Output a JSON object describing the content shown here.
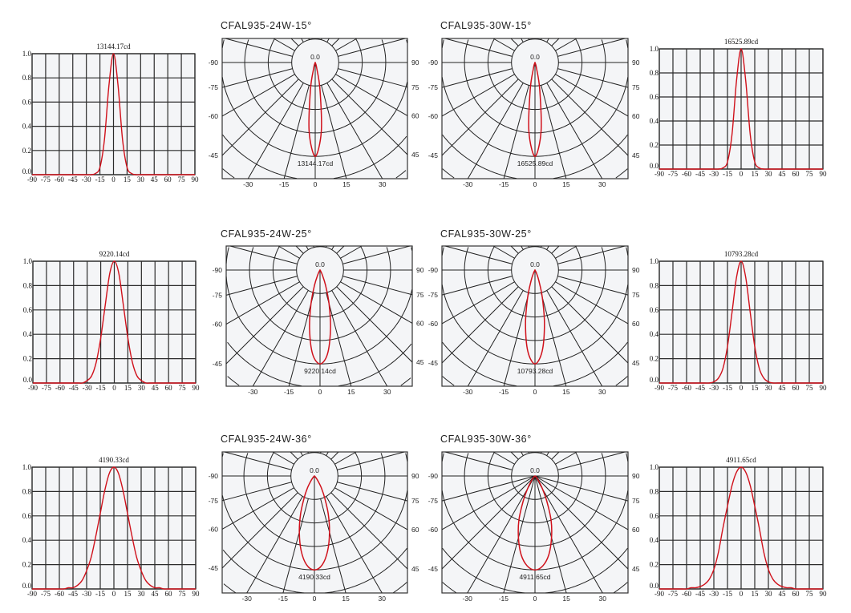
{
  "colors": {
    "curve": "#d0111b",
    "grid": "#2b2b2b",
    "plot_bg": "#f4f5f7"
  },
  "chart_data": [
    {
      "type": "line",
      "id": "cart-24w-15",
      "peak_label": "13144.17cd",
      "x": [
        -90,
        -85,
        -80,
        -75,
        -70,
        -65,
        -60,
        -55,
        -50,
        -45,
        -40,
        -35,
        -30,
        -25,
        -20,
        -15,
        -10,
        -5,
        0,
        5,
        10,
        15,
        20,
        25,
        30,
        35,
        40,
        45,
        50,
        55,
        60,
        65,
        70,
        75,
        80,
        85,
        90
      ],
      "values": [
        0,
        0,
        0,
        0,
        0,
        0,
        0,
        0,
        0,
        0,
        0,
        0,
        0,
        0,
        0.01,
        0.06,
        0.29,
        0.74,
        1,
        0.74,
        0.29,
        0.06,
        0.01,
        0,
        0,
        0,
        0,
        0,
        0,
        0,
        0,
        0,
        0,
        0,
        0,
        0,
        0
      ],
      "xticks": [
        -90,
        -75,
        -60,
        -45,
        -30,
        -15,
        0,
        15,
        30,
        45,
        60,
        75,
        90
      ],
      "yticks": [
        "0.0",
        "0.2",
        "0.4",
        "0.6",
        "0.8",
        "1.0"
      ],
      "xlim": [
        -90,
        90
      ],
      "ylim": [
        0,
        1
      ],
      "grid": true
    },
    {
      "type": "line",
      "id": "cart-30w-15",
      "peak_label": "16525.89cd",
      "x": [
        -90,
        -85,
        -80,
        -75,
        -70,
        -65,
        -60,
        -55,
        -50,
        -45,
        -40,
        -35,
        -30,
        -25,
        -20,
        -15,
        -10,
        -5,
        0,
        5,
        10,
        15,
        20,
        25,
        30,
        35,
        40,
        45,
        50,
        55,
        60,
        65,
        70,
        75,
        80,
        85,
        90
      ],
      "values": [
        0,
        0,
        0,
        0,
        0,
        0,
        0,
        0,
        0,
        0,
        0,
        0,
        0,
        0,
        0.01,
        0.06,
        0.29,
        0.74,
        1,
        0.74,
        0.29,
        0.06,
        0.01,
        0,
        0,
        0,
        0,
        0,
        0,
        0,
        0,
        0,
        0,
        0,
        0,
        0,
        0
      ],
      "xticks": [
        -90,
        -75,
        -60,
        -45,
        -30,
        -15,
        0,
        15,
        30,
        45,
        60,
        75,
        90
      ],
      "yticks": [
        "0.0",
        "0.2",
        "0.4",
        "0.6",
        "0.8",
        "1.0"
      ],
      "xlim": [
        -90,
        90
      ],
      "ylim": [
        0,
        1
      ],
      "grid": true
    },
    {
      "type": "line",
      "id": "cart-24w-25",
      "peak_label": "9220.14cd",
      "x": [
        -90,
        -85,
        -80,
        -75,
        -70,
        -65,
        -60,
        -55,
        -50,
        -45,
        -40,
        -35,
        -30,
        -25,
        -20,
        -15,
        -10,
        -5,
        0,
        5,
        10,
        15,
        20,
        25,
        30,
        35,
        40,
        45,
        50,
        55,
        60,
        65,
        70,
        75,
        80,
        85,
        90
      ],
      "values": [
        0,
        0,
        0,
        0,
        0,
        0,
        0,
        0,
        0,
        0,
        0,
        0,
        0.02,
        0.06,
        0.17,
        0.37,
        0.64,
        0.9,
        1,
        0.9,
        0.64,
        0.37,
        0.17,
        0.06,
        0.02,
        0,
        0,
        0,
        0,
        0,
        0,
        0,
        0,
        0,
        0,
        0,
        0
      ],
      "xticks": [
        -90,
        -75,
        -60,
        -45,
        -30,
        -15,
        0,
        15,
        30,
        45,
        60,
        75,
        90
      ],
      "yticks": [
        "0.0",
        "0.2",
        "0.4",
        "0.6",
        "0.8",
        "1.0"
      ],
      "xlim": [
        -90,
        90
      ],
      "ylim": [
        0,
        1
      ],
      "grid": true
    },
    {
      "type": "line",
      "id": "cart-30w-25",
      "peak_label": "10793.28cd",
      "x": [
        -90,
        -85,
        -80,
        -75,
        -70,
        -65,
        -60,
        -55,
        -50,
        -45,
        -40,
        -35,
        -30,
        -25,
        -20,
        -15,
        -10,
        -5,
        0,
        5,
        10,
        15,
        20,
        25,
        30,
        35,
        40,
        45,
        50,
        55,
        60,
        65,
        70,
        75,
        80,
        85,
        90
      ],
      "values": [
        0,
        0,
        0,
        0,
        0,
        0,
        0,
        0,
        0,
        0,
        0,
        0,
        0.01,
        0.04,
        0.12,
        0.3,
        0.58,
        0.87,
        1,
        0.87,
        0.58,
        0.3,
        0.12,
        0.04,
        0.01,
        0,
        0,
        0,
        0,
        0,
        0,
        0,
        0,
        0,
        0,
        0,
        0
      ],
      "xticks": [
        -90,
        -75,
        -60,
        -45,
        -30,
        -15,
        0,
        15,
        30,
        45,
        60,
        75,
        90
      ],
      "yticks": [
        "0.0",
        "0.2",
        "0.4",
        "0.6",
        "0.8",
        "1.0"
      ],
      "xlim": [
        -90,
        90
      ],
      "ylim": [
        0,
        1
      ],
      "grid": true
    },
    {
      "type": "line",
      "id": "cart-24w-36",
      "peak_label": "4190.33cd",
      "x": [
        -90,
        -85,
        -80,
        -75,
        -70,
        -65,
        -60,
        -55,
        -50,
        -45,
        -40,
        -35,
        -30,
        -25,
        -20,
        -15,
        -10,
        -5,
        0,
        5,
        10,
        15,
        20,
        25,
        30,
        35,
        40,
        45,
        50,
        55,
        60,
        65,
        70,
        75,
        80,
        85,
        90
      ],
      "values": [
        0,
        0,
        0,
        0,
        0,
        0,
        0,
        0,
        0.01,
        0.01,
        0.03,
        0.07,
        0.15,
        0.26,
        0.43,
        0.62,
        0.81,
        0.95,
        1,
        0.95,
        0.81,
        0.62,
        0.43,
        0.26,
        0.15,
        0.07,
        0.03,
        0.01,
        0.01,
        0,
        0,
        0,
        0,
        0,
        0,
        0,
        0
      ],
      "xticks": [
        -90,
        -75,
        -60,
        -45,
        -30,
        -15,
        0,
        15,
        30,
        45,
        60,
        75,
        90
      ],
      "yticks": [
        "0.0",
        "0.2",
        "0.4",
        "0.6",
        "0.8",
        "1.0"
      ],
      "xlim": [
        -90,
        90
      ],
      "ylim": [
        0,
        1
      ],
      "grid": true
    },
    {
      "type": "line",
      "id": "cart-30w-36",
      "peak_label": "4911.65cd",
      "x": [
        -90,
        -85,
        -80,
        -75,
        -70,
        -65,
        -60,
        -55,
        -50,
        -45,
        -40,
        -35,
        -30,
        -25,
        -20,
        -15,
        -10,
        -5,
        0,
        5,
        10,
        15,
        20,
        25,
        30,
        35,
        40,
        45,
        50,
        55,
        60,
        65,
        70,
        75,
        80,
        85,
        90
      ],
      "values": [
        0,
        0,
        0,
        0,
        0,
        0,
        0,
        0.01,
        0.01,
        0.02,
        0.04,
        0.08,
        0.16,
        0.3,
        0.5,
        0.68,
        0.85,
        0.96,
        1,
        0.96,
        0.85,
        0.68,
        0.5,
        0.3,
        0.16,
        0.08,
        0.04,
        0.02,
        0.01,
        0.01,
        0,
        0,
        0,
        0,
        0,
        0,
        0
      ],
      "xticks": [
        -90,
        -75,
        -60,
        -45,
        -30,
        -15,
        0,
        15,
        30,
        45,
        60,
        75,
        90
      ],
      "yticks": [
        "0.0",
        "0.2",
        "0.4",
        "0.6",
        "0.8",
        "1.0"
      ],
      "xlim": [
        -90,
        90
      ],
      "ylim": [
        0,
        1
      ],
      "grid": true
    },
    {
      "type": "polar",
      "id": "polar-24w-15",
      "title": "CFAL935-24W-15°",
      "center_label": "0.0",
      "peak_label": "13144.17cd",
      "side_ticks_left": [
        "-90",
        "-75",
        "-60",
        "-45"
      ],
      "side_ticks_right": [
        "90",
        "75",
        "60",
        "45"
      ],
      "bottom_ticks": [
        "-30",
        "-15",
        "0",
        "15",
        "30"
      ],
      "radials_to_center": false
    },
    {
      "type": "polar",
      "id": "polar-30w-15",
      "title": "CFAL935-30W-15°",
      "center_label": "0.0",
      "peak_label": "16525.89cd",
      "side_ticks_left": [
        "-90",
        "-75",
        "-60",
        "-45"
      ],
      "side_ticks_right": [
        "90",
        "75",
        "60",
        "45"
      ],
      "bottom_ticks": [
        "-30",
        "-15",
        "0",
        "15",
        "30"
      ],
      "radials_to_center": false
    },
    {
      "type": "polar",
      "id": "polar-24w-25",
      "title": "CFAL935-24W-25°",
      "center_label": "0.0",
      "peak_label": "9220.14cd",
      "side_ticks_left": [
        "-90",
        "-75",
        "-60",
        "-45"
      ],
      "side_ticks_right": [
        "90",
        "75",
        "60",
        "45"
      ],
      "bottom_ticks": [
        "-30",
        "-15",
        "0",
        "15",
        "30"
      ],
      "radials_to_center": false
    },
    {
      "type": "polar",
      "id": "polar-30w-25",
      "title": "CFAL935-30W-25°",
      "center_label": "0.0",
      "peak_label": "10793.28cd",
      "side_ticks_left": [
        "-90",
        "-75",
        "-60",
        "-45"
      ],
      "side_ticks_right": [
        "90",
        "75",
        "60",
        "45"
      ],
      "bottom_ticks": [
        "-30",
        "-15",
        "0",
        "15",
        "30"
      ],
      "radials_to_center": false
    },
    {
      "type": "polar",
      "id": "polar-24w-36",
      "title": "CFAL935-24W-36°",
      "center_label": "0.0",
      "peak_label": "4190.33cd",
      "side_ticks_left": [
        "-90",
        "-75",
        "-60",
        "-45"
      ],
      "side_ticks_right": [
        "90",
        "75",
        "60",
        "45"
      ],
      "bottom_ticks": [
        "-30",
        "-15",
        "0",
        "15",
        "30"
      ],
      "radials_to_center": false
    },
    {
      "type": "polar",
      "id": "polar-30w-36",
      "title": "CFAL935-30W-36°",
      "center_label": "0.0",
      "peak_label": "4911.65cd",
      "side_ticks_left": [
        "-90",
        "-75",
        "-60",
        "-45"
      ],
      "side_ticks_right": [
        "90",
        "75",
        "60",
        "45"
      ],
      "bottom_ticks": [
        "-30",
        "-15",
        "0",
        "15",
        "30"
      ],
      "radials_to_center": true
    }
  ]
}
